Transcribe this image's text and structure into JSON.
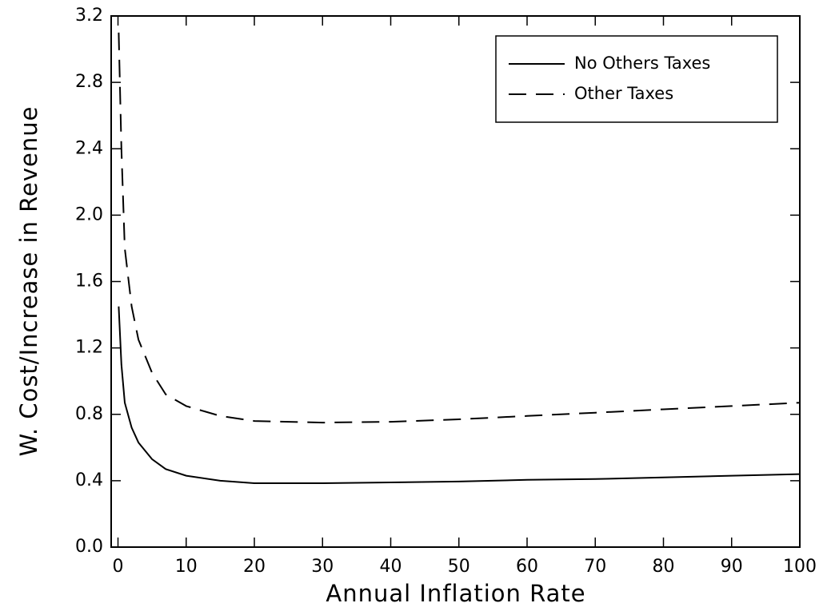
{
  "chart_data": {
    "type": "line",
    "xlabel": "Annual Inflation Rate",
    "ylabel": "W. Cost/Increase in Revenue",
    "xlim": [
      -1,
      100
    ],
    "ylim": [
      0,
      3.2
    ],
    "xticks": [
      0,
      10,
      20,
      30,
      40,
      50,
      60,
      70,
      80,
      90,
      100
    ],
    "yticks": [
      {
        "value": 0,
        "label": "0.0"
      },
      0.4,
      0.8,
      1.2,
      1.6,
      {
        "value": 2,
        "label": "2.0"
      },
      2.4,
      2.8,
      3.2
    ],
    "legend": "upper right",
    "series": [
      {
        "name": "No Others Taxes",
        "color": "#000000",
        "dash": "solid",
        "x": [
          0.1,
          0.5,
          1,
          2,
          3,
          5,
          7,
          10,
          15,
          20,
          30,
          40,
          50,
          60,
          70,
          80,
          90,
          100
        ],
        "values": [
          1.45,
          1.1,
          0.87,
          0.72,
          0.63,
          0.53,
          0.47,
          0.43,
          0.4,
          0.385,
          0.385,
          0.39,
          0.395,
          0.405,
          0.41,
          0.42,
          0.43,
          0.44
        ]
      },
      {
        "name": "Other Taxes",
        "color": "#000000",
        "dash": "dashed",
        "x": [
          0.1,
          0.5,
          1,
          2,
          3,
          5,
          7,
          10,
          15,
          20,
          30,
          40,
          50,
          60,
          70,
          80,
          90,
          100
        ],
        "values": [
          3.1,
          2.4,
          1.8,
          1.45,
          1.25,
          1.05,
          0.92,
          0.85,
          0.79,
          0.76,
          0.75,
          0.755,
          0.77,
          0.79,
          0.81,
          0.83,
          0.85,
          0.87
        ]
      }
    ]
  }
}
